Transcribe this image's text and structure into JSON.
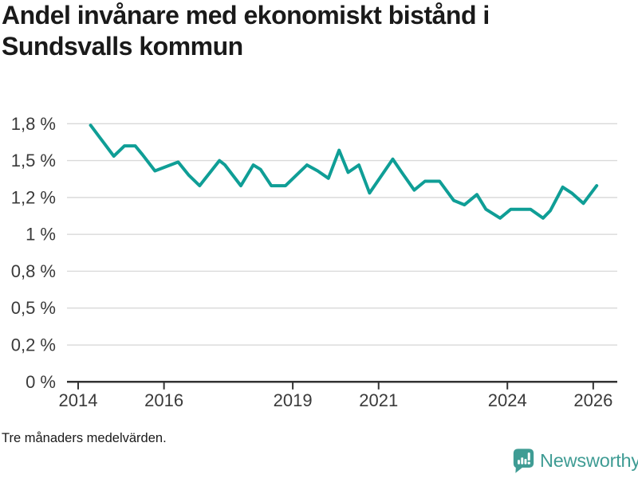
{
  "title": "Andel invånare med ekonomiskt bistånd i Sundsvalls kommun",
  "footnote": "Tre månaders medelvärden.",
  "brand": {
    "name": "Newsworthy"
  },
  "colors": {
    "line": "#0f9e96",
    "grid": "#d9d9d9",
    "axis": "#333333",
    "tick_text": "#3a3a3a",
    "title_text": "#1a1a1a",
    "brand": "#3f9c94",
    "background": "#ffffff"
  },
  "chart_data": {
    "type": "line",
    "title": "Andel invånare med ekonomiskt bistånd i Sundsvalls kommun",
    "xlabel": "",
    "ylabel": "",
    "unit": "%",
    "grid": true,
    "legend": "none",
    "x_range": [
      2013.74,
      2026.56
    ],
    "y_range": [
      0,
      1.75
    ],
    "x_ticks": [
      {
        "label": "2014",
        "value": 2014
      },
      {
        "label": "2016",
        "value": 2016
      },
      {
        "label": "2019",
        "value": 2019
      },
      {
        "label": "2021",
        "value": 2021
      },
      {
        "label": "2024",
        "value": 2024
      },
      {
        "label": "2026",
        "value": 2026
      }
    ],
    "y_ticks": [
      {
        "label": "1,8 %",
        "value": 1.75
      },
      {
        "label": "1,5 %",
        "value": 1.5
      },
      {
        "label": "1,2 %",
        "value": 1.25
      },
      {
        "label": "1 %",
        "value": 1.0
      },
      {
        "label": "0,8 %",
        "value": 0.75
      },
      {
        "label": "0,5 %",
        "value": 0.5
      },
      {
        "label": "0,2 %",
        "value": 0.25
      },
      {
        "label": "0 %",
        "value": 0
      }
    ],
    "series": [
      {
        "name": "Andel invånare med ekonomiskt bistånd",
        "points": [
          [
            2014.29,
            1.74
          ],
          [
            2014.83,
            1.53
          ],
          [
            2015.08,
            1.6
          ],
          [
            2015.33,
            1.6
          ],
          [
            2015.5,
            1.54
          ],
          [
            2015.79,
            1.43
          ],
          [
            2016.33,
            1.49
          ],
          [
            2016.58,
            1.4
          ],
          [
            2016.83,
            1.33
          ],
          [
            2017.29,
            1.5
          ],
          [
            2017.42,
            1.47
          ],
          [
            2017.79,
            1.33
          ],
          [
            2018.08,
            1.47
          ],
          [
            2018.25,
            1.44
          ],
          [
            2018.5,
            1.33
          ],
          [
            2018.83,
            1.33
          ],
          [
            2019.33,
            1.47
          ],
          [
            2019.58,
            1.43
          ],
          [
            2019.83,
            1.38
          ],
          [
            2020.08,
            1.57
          ],
          [
            2020.29,
            1.42
          ],
          [
            2020.54,
            1.47
          ],
          [
            2020.79,
            1.28
          ],
          [
            2021.33,
            1.51
          ],
          [
            2021.54,
            1.42
          ],
          [
            2021.83,
            1.3
          ],
          [
            2022.08,
            1.36
          ],
          [
            2022.42,
            1.36
          ],
          [
            2022.75,
            1.23
          ],
          [
            2023.0,
            1.2
          ],
          [
            2023.29,
            1.27
          ],
          [
            2023.5,
            1.17
          ],
          [
            2023.83,
            1.11
          ],
          [
            2024.08,
            1.17
          ],
          [
            2024.54,
            1.17
          ],
          [
            2024.83,
            1.11
          ],
          [
            2025.0,
            1.16
          ],
          [
            2025.29,
            1.32
          ],
          [
            2025.5,
            1.28
          ],
          [
            2025.77,
            1.21
          ],
          [
            2026.08,
            1.33
          ]
        ]
      }
    ]
  }
}
